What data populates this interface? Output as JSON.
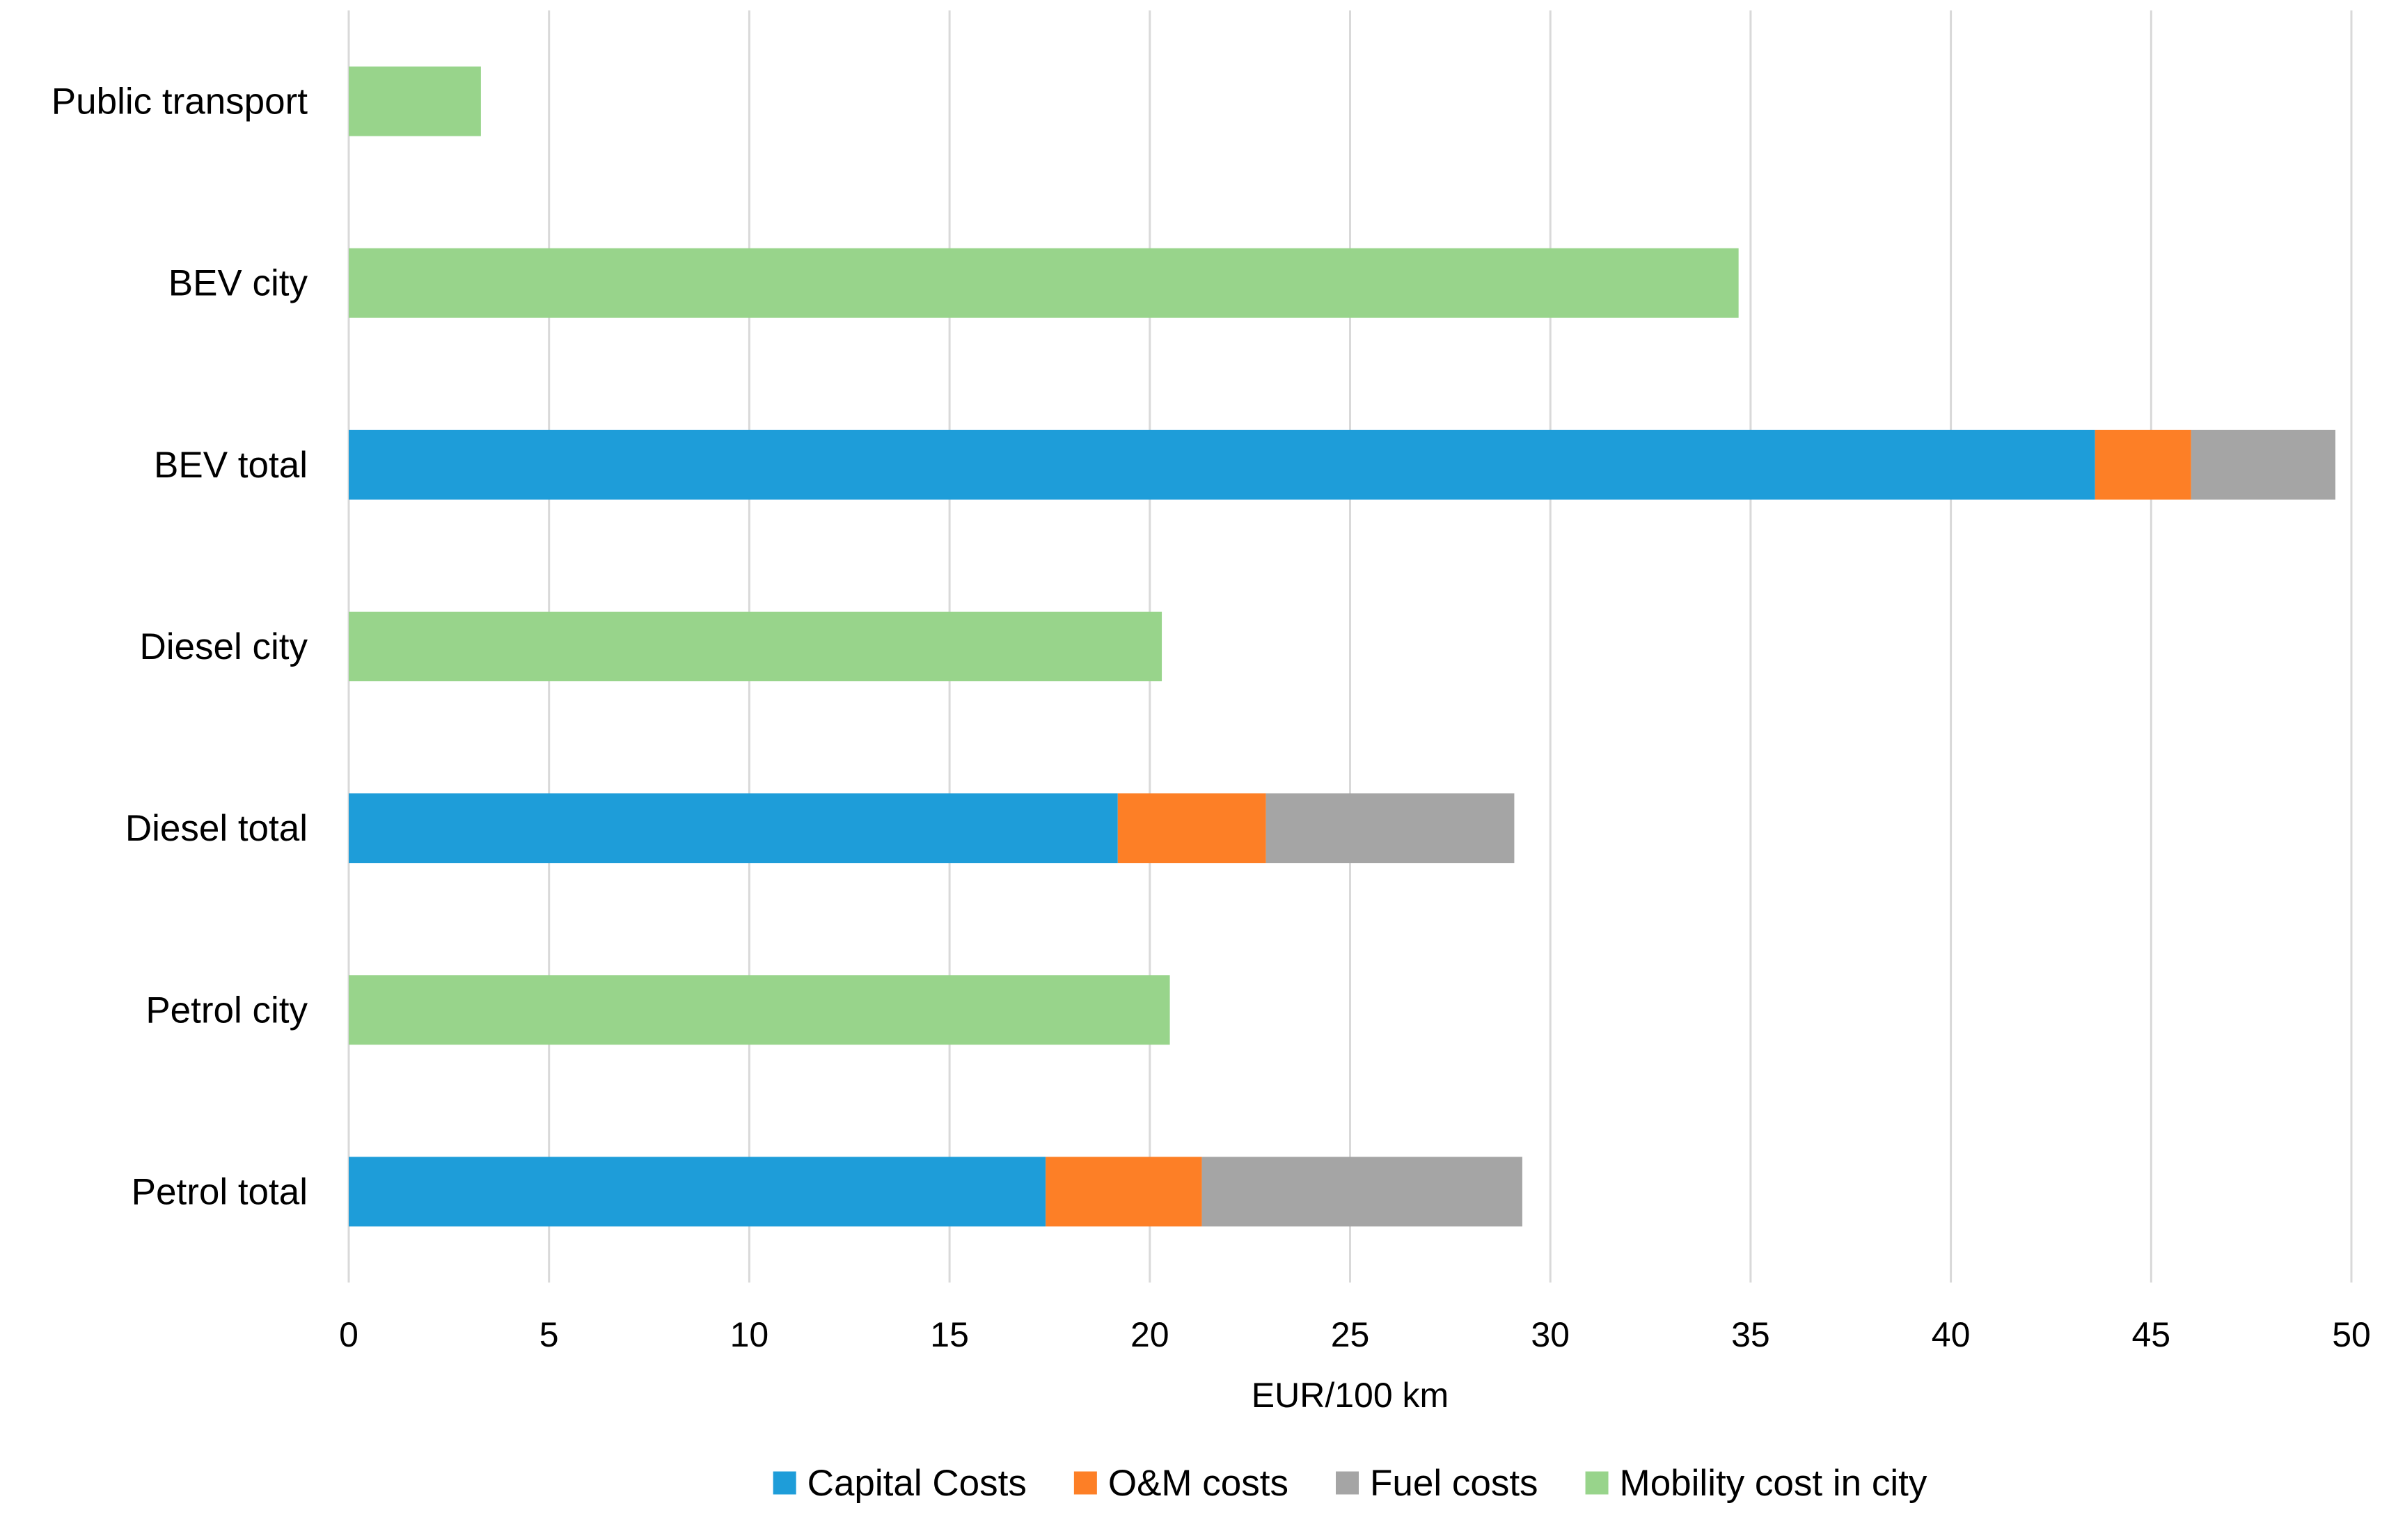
{
  "chart_data": {
    "type": "bar",
    "orientation": "horizontal",
    "stacked": true,
    "title": "",
    "xlabel": "EUR/100 km",
    "ylabel": "",
    "xlim": [
      0,
      50
    ],
    "xticks": [
      0,
      5,
      10,
      15,
      20,
      25,
      30,
      35,
      40,
      45,
      50
    ],
    "grid": true,
    "legend_position": "bottom",
    "categories": [
      "Public transport",
      "BEV city",
      "BEV total",
      "Diesel city",
      "Diesel total",
      "Petrol city",
      "Petrol total"
    ],
    "series": [
      {
        "name": "Capital Costs",
        "color": "#1e9dd9",
        "values": [
          0,
          0,
          43.6,
          0,
          19.2,
          0,
          17.4
        ]
      },
      {
        "name": "O&M costs",
        "color": "#fd7f26",
        "values": [
          0,
          0,
          2.4,
          0,
          3.7,
          0,
          3.9
        ]
      },
      {
        "name": "Fuel costs",
        "color": "#a5a5a5",
        "values": [
          0,
          0,
          3.6,
          0,
          6.2,
          0,
          8.0
        ]
      },
      {
        "name": "Mobility cost in city",
        "color": "#98d48b",
        "values": [
          3.3,
          34.7,
          0,
          20.3,
          0,
          20.5,
          0
        ]
      }
    ]
  }
}
